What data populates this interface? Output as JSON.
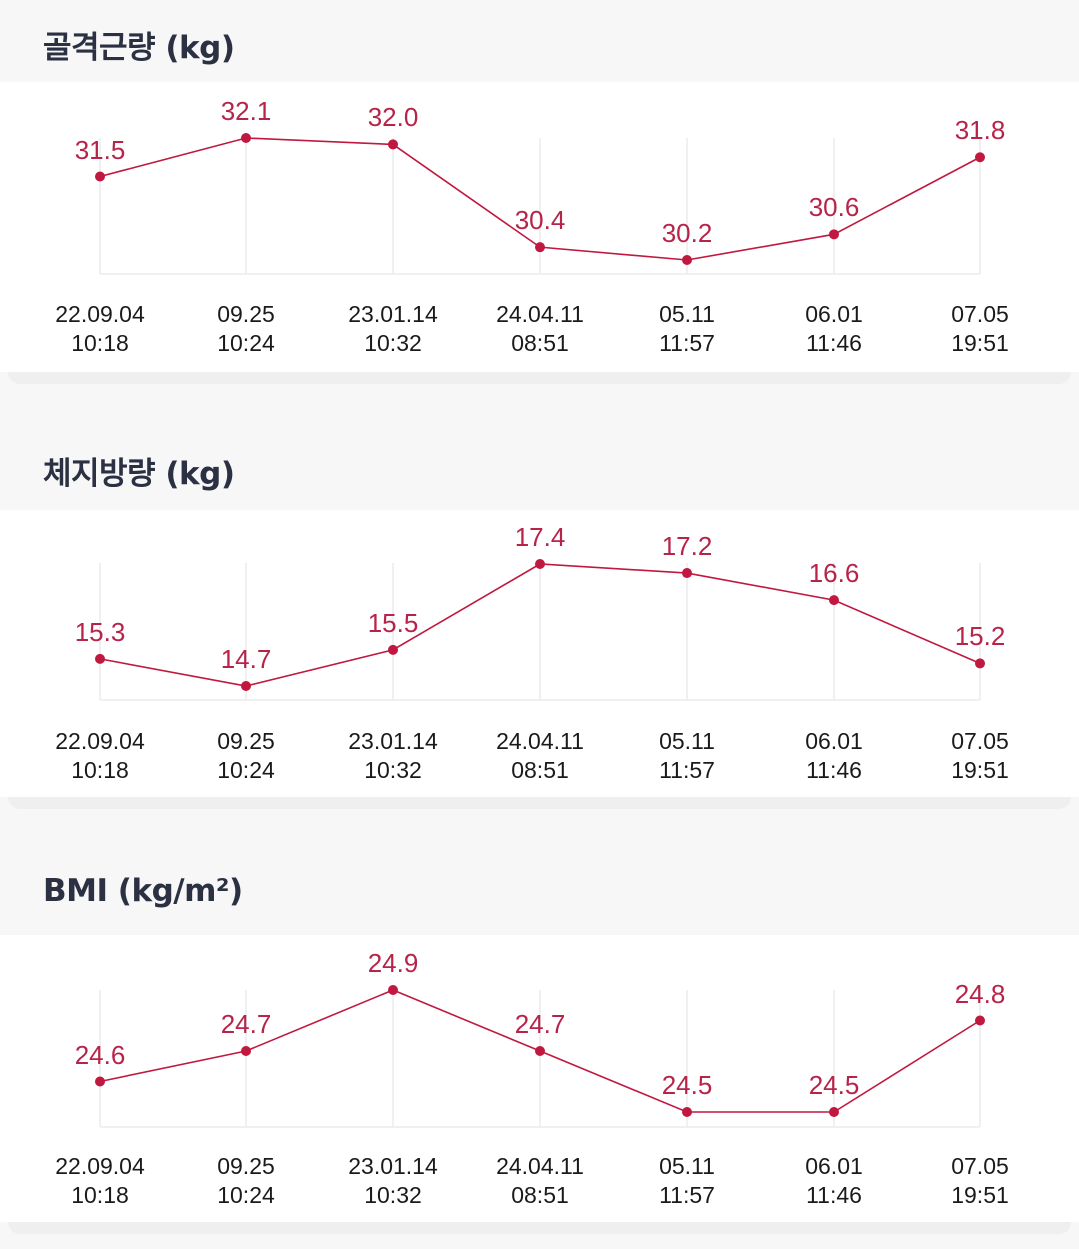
{
  "accent_color": "#c0183f",
  "chart_data": [
    {
      "type": "line",
      "title": "골격근량 (kg)",
      "categories": [
        "22.09.04 10:18",
        "09.25 10:24",
        "23.01.14 10:32",
        "24.04.11 08:51",
        "05.11 11:57",
        "06.01 11:46",
        "07.05 19:51"
      ],
      "values": [
        31.5,
        32.1,
        32.0,
        30.4,
        30.2,
        30.6,
        31.8
      ],
      "xlabel": "",
      "ylabel": "",
      "grid": "vertical"
    },
    {
      "type": "line",
      "title": "체지방량 (kg)",
      "categories": [
        "22.09.04 10:18",
        "09.25 10:24",
        "23.01.14 10:32",
        "24.04.11 08:51",
        "05.11 11:57",
        "06.01 11:46",
        "07.05 19:51"
      ],
      "values": [
        15.3,
        14.7,
        15.5,
        17.4,
        17.2,
        16.6,
        15.2
      ],
      "xlabel": "",
      "ylabel": "",
      "grid": "vertical"
    },
    {
      "type": "line",
      "title": "BMI (kg/m²)",
      "categories": [
        "22.09.04 10:18",
        "09.25 10:24",
        "23.01.14 10:32",
        "24.04.11 08:51",
        "05.11 11:57",
        "06.01 11:46",
        "07.05 19:51"
      ],
      "values": [
        24.6,
        24.7,
        24.9,
        24.7,
        24.5,
        24.5,
        24.8
      ],
      "xlabel": "",
      "ylabel": "",
      "grid": "vertical"
    }
  ],
  "sections": [
    {
      "title": "골격근량 (kg)",
      "labels": [
        "31.5",
        "32.1",
        "32.0",
        "30.4",
        "30.2",
        "30.6",
        "31.8"
      ],
      "dates": [
        "22.09.04",
        "09.25",
        "23.01.14",
        "24.04.11",
        "05.11",
        "06.01",
        "07.05"
      ],
      "times": [
        "10:18",
        "10:24",
        "10:32",
        "08:51",
        "11:57",
        "11:46",
        "19:51"
      ]
    },
    {
      "title": "체지방량 (kg)",
      "labels": [
        "15.3",
        "14.7",
        "15.5",
        "17.4",
        "17.2",
        "16.6",
        "15.2"
      ],
      "dates": [
        "22.09.04",
        "09.25",
        "23.01.14",
        "24.04.11",
        "05.11",
        "06.01",
        "07.05"
      ],
      "times": [
        "10:18",
        "10:24",
        "10:32",
        "08:51",
        "11:57",
        "11:46",
        "19:51"
      ]
    },
    {
      "title": "BMI (kg/m²)",
      "labels": [
        "24.6",
        "24.7",
        "24.9",
        "24.7",
        "24.5",
        "24.5",
        "24.8"
      ],
      "dates": [
        "22.09.04",
        "09.25",
        "23.01.14",
        "24.04.11",
        "05.11",
        "06.01",
        "07.05"
      ],
      "times": [
        "10:18",
        "10:24",
        "10:32",
        "08:51",
        "11:57",
        "11:46",
        "19:51"
      ]
    }
  ]
}
